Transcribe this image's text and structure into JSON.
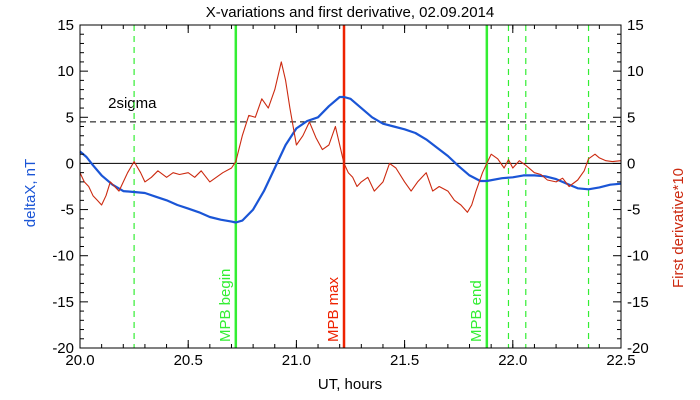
{
  "chart_data": {
    "type": "line",
    "title": "X-variations and first derivative, 02.09.2014",
    "xlabel": "UT, hours",
    "ylabel_left": "deltaX, nT",
    "ylabel_right": "First derivative*10",
    "xlim": [
      20.0,
      22.5
    ],
    "ylim": [
      -20,
      15
    ],
    "x_ticks": [
      "20.0",
      "20.5",
      "21.0",
      "21.5",
      "22.0",
      "22.5"
    ],
    "x_tick_values": [
      20.0,
      20.5,
      21.0,
      21.5,
      22.0,
      22.5
    ],
    "y_ticks": [
      "15",
      "10",
      "5",
      "0",
      "-5",
      "-10",
      "-15",
      "-20"
    ],
    "y_tick_values": [
      15,
      10,
      5,
      0,
      -5,
      -10,
      -15,
      -20
    ],
    "threshold": {
      "label": "2sigma",
      "value": 4.5
    },
    "zero_line": 0,
    "vertical_lines": [
      {
        "x": 20.72,
        "label": "MPB begin",
        "color": "#33ee33"
      },
      {
        "x": 21.22,
        "label": "MPB max",
        "color": "#ee2200"
      },
      {
        "x": 21.88,
        "label": "MPB end",
        "color": "#33ee33"
      }
    ],
    "dashed_markers": [
      20.25,
      21.98,
      22.06,
      22.35
    ],
    "series": [
      {
        "color": "#1a55d6",
        "axis": "left",
        "x": [
          20.0,
          20.03,
          20.06,
          20.1,
          20.15,
          20.2,
          20.25,
          20.3,
          20.35,
          20.4,
          20.45,
          20.5,
          20.55,
          20.6,
          20.65,
          20.7,
          20.72,
          20.75,
          20.8,
          20.85,
          20.9,
          20.95,
          21.0,
          21.05,
          21.1,
          21.15,
          21.2,
          21.22,
          21.25,
          21.3,
          21.35,
          21.4,
          21.45,
          21.5,
          21.55,
          21.6,
          21.65,
          21.7,
          21.75,
          21.8,
          21.85,
          21.88,
          21.95,
          22.0,
          22.05,
          22.1,
          22.15,
          22.2,
          22.25,
          22.3,
          22.35,
          22.4,
          22.45,
          22.5
        ],
        "y": [
          1.3,
          0.7,
          -0.2,
          -1.3,
          -2.3,
          -3.0,
          -3.1,
          -3.2,
          -3.6,
          -4.0,
          -4.5,
          -4.9,
          -5.3,
          -5.8,
          -6.1,
          -6.3,
          -6.4,
          -6.2,
          -5.0,
          -3.0,
          -0.5,
          2.0,
          3.8,
          4.6,
          5.0,
          6.2,
          7.2,
          7.2,
          7.0,
          6.0,
          5.0,
          4.3,
          4.0,
          3.7,
          3.3,
          2.6,
          1.7,
          0.8,
          -0.3,
          -1.3,
          -1.9,
          -1.9,
          -1.6,
          -1.5,
          -1.3,
          -1.3,
          -1.4,
          -1.7,
          -2.2,
          -2.7,
          -2.8,
          -2.6,
          -2.3,
          -2.2
        ]
      },
      {
        "color": "#cc2a10",
        "axis": "right",
        "x": [
          20.0,
          20.02,
          20.04,
          20.06,
          20.08,
          20.1,
          20.12,
          20.14,
          20.16,
          20.18,
          20.2,
          20.22,
          20.25,
          20.28,
          20.3,
          20.33,
          20.36,
          20.4,
          20.43,
          20.46,
          20.5,
          20.53,
          20.56,
          20.6,
          20.63,
          20.66,
          20.7,
          20.72,
          20.75,
          20.78,
          20.81,
          20.84,
          20.87,
          20.9,
          20.93,
          20.95,
          20.97,
          21.0,
          21.03,
          21.06,
          21.09,
          21.12,
          21.15,
          21.18,
          21.2,
          21.22,
          21.24,
          21.26,
          21.28,
          21.3,
          21.33,
          21.36,
          21.4,
          21.43,
          21.46,
          21.5,
          21.53,
          21.56,
          21.6,
          21.63,
          21.66,
          21.7,
          21.73,
          21.76,
          21.79,
          21.81,
          21.83,
          21.86,
          21.88,
          21.9,
          21.93,
          21.96,
          21.98,
          22.0,
          22.03,
          22.06,
          22.1,
          22.13,
          22.16,
          22.2,
          22.23,
          22.26,
          22.3,
          22.33,
          22.35,
          22.38,
          22.4,
          22.43,
          22.46,
          22.5
        ],
        "y": [
          -1.0,
          -2.0,
          -2.5,
          -3.5,
          -4.0,
          -4.5,
          -3.5,
          -2.0,
          -2.5,
          -3.0,
          -2.0,
          -1.0,
          0.2,
          -1.0,
          -2.0,
          -1.5,
          -0.8,
          -1.5,
          -1.0,
          -1.2,
          -1.0,
          -1.5,
          -0.8,
          -2.0,
          -1.5,
          -1.0,
          -0.5,
          0.2,
          3.0,
          5.2,
          5.0,
          7.0,
          6.0,
          8.0,
          11.0,
          9.0,
          6.0,
          2.0,
          3.0,
          4.5,
          2.8,
          1.5,
          2.0,
          4.0,
          2.0,
          0.0,
          -1.0,
          -1.5,
          -2.5,
          -2.0,
          -1.5,
          -3.0,
          -2.0,
          0.0,
          -0.5,
          -2.0,
          -3.0,
          -2.0,
          -1.0,
          -3.0,
          -2.5,
          -3.0,
          -4.0,
          -4.5,
          -5.3,
          -4.5,
          -3.0,
          -1.0,
          0.0,
          1.0,
          0.5,
          -0.5,
          0.4,
          -0.5,
          0.3,
          -0.2,
          -1.0,
          -1.2,
          -1.8,
          -2.0,
          -1.6,
          -2.5,
          -1.8,
          -0.8,
          0.5,
          1.0,
          0.6,
          0.3,
          0.2,
          0.3
        ]
      }
    ]
  }
}
